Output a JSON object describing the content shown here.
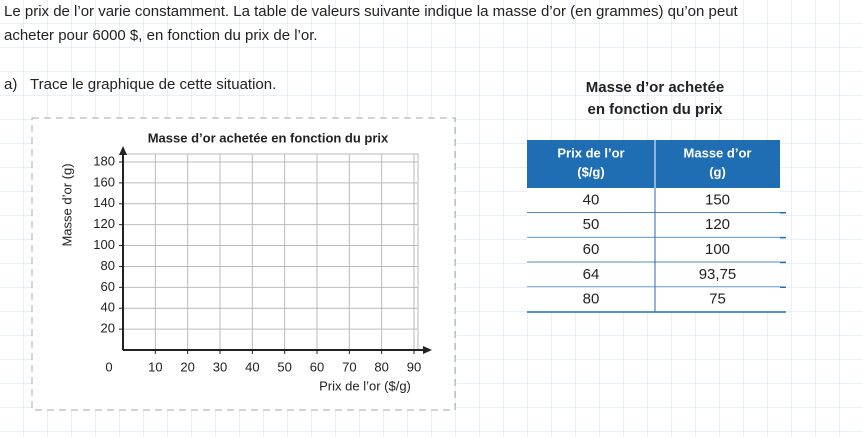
{
  "intro": [
    "Le prix de l’or varie constamment. La table de valeurs suivante indique la masse d’or (en grammes) qu’on peut",
    "acheter pour 6000 $, en fonction du prix de l’or."
  ],
  "question": {
    "label": "a)",
    "text": "Trace le graphique de cette situation."
  },
  "chart": {
    "title": "Masse d’or achetée en fonction du prix",
    "xlabel": "Prix de l’or ($/g)",
    "ylabel": "Masse d’or (g)",
    "origin": "0",
    "xlim": [
      0,
      90
    ],
    "ylim": [
      0,
      180
    ],
    "xticks": [
      10,
      20,
      30,
      40,
      50,
      60,
      70,
      80,
      90
    ],
    "yticks": [
      20,
      40,
      60,
      80,
      100,
      120,
      140,
      160,
      180
    ],
    "grid": true
  },
  "table": {
    "title": [
      "Masse d’or achetée",
      "en fonction du prix"
    ],
    "header": [
      [
        "Prix de l’or",
        "($/g)"
      ],
      [
        "Masse d’or",
        "(g)"
      ]
    ],
    "rows": [
      [
        "40",
        "150"
      ],
      [
        "50",
        "120"
      ],
      [
        "60",
        "100"
      ],
      [
        "64",
        "93,75"
      ],
      [
        "80",
        "75"
      ]
    ]
  }
}
